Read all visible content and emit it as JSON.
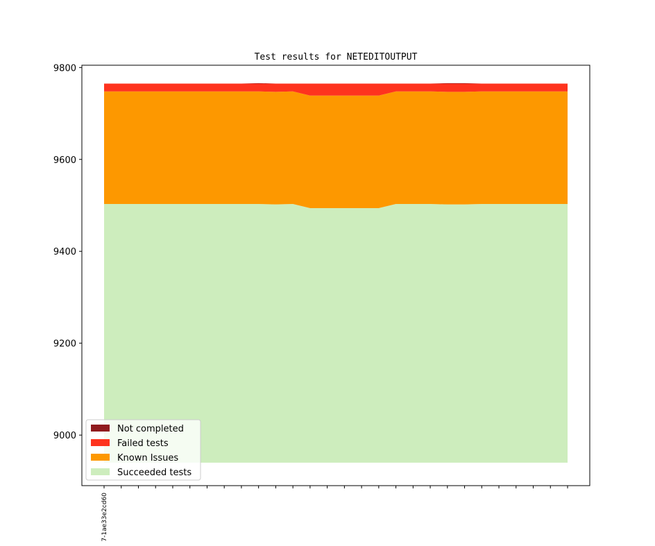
{
  "chart_data": {
    "type": "area",
    "title": "Test results for NETEDITOUTPUT",
    "xlabel": "",
    "ylabel": "",
    "ylim": [
      8890,
      9805
    ],
    "yticks": [
      9000,
      9200,
      9400,
      9600,
      9800
    ],
    "x_tick_count": 28,
    "x_tick_labels": [
      "7-1ae33e2cd60"
    ],
    "series": [
      {
        "name": "Succeeded tests",
        "color": "#cdedbd",
        "values": [
          9503,
          9503,
          9503,
          9503,
          9503,
          9503,
          9503,
          9503,
          9503,
          9503,
          9502,
          9503,
          9494,
          9494,
          9494,
          9494,
          9494,
          9503,
          9503,
          9503,
          9502,
          9502,
          9503,
          9503,
          9503,
          9503,
          9503,
          9503
        ]
      },
      {
        "name": "Known Issues",
        "color": "#fd9800",
        "values": [
          245,
          245,
          245,
          245,
          245,
          245,
          245,
          245,
          245,
          245,
          245,
          245,
          245,
          245,
          245,
          245,
          245,
          245,
          245,
          245,
          245,
          245,
          245,
          245,
          245,
          245,
          245,
          245
        ]
      },
      {
        "name": "Failed tests",
        "color": "#fe331e",
        "values": [
          17,
          17,
          17,
          17,
          17,
          17,
          17,
          17,
          17,
          17,
          18,
          17,
          26,
          26,
          26,
          26,
          26,
          17,
          17,
          17,
          18,
          18,
          17,
          17,
          17,
          17,
          17,
          17
        ]
      },
      {
        "name": "Not completed",
        "color": "#901a1e",
        "values": [
          0,
          0,
          0,
          0,
          0,
          0,
          0,
          0,
          0,
          1,
          0,
          0,
          0,
          0,
          0,
          0,
          0,
          0,
          0,
          0,
          1,
          1,
          0,
          0,
          0,
          0,
          0,
          0
        ]
      }
    ],
    "baseline": 8940,
    "legend": {
      "placement": "lower left",
      "entries": [
        {
          "label": "Not completed",
          "color": "#901a1e"
        },
        {
          "label": "Failed tests",
          "color": "#fe331e"
        },
        {
          "label": "Known Issues",
          "color": "#fd9800"
        },
        {
          "label": "Succeeded tests",
          "color": "#cdedbd"
        }
      ]
    }
  }
}
